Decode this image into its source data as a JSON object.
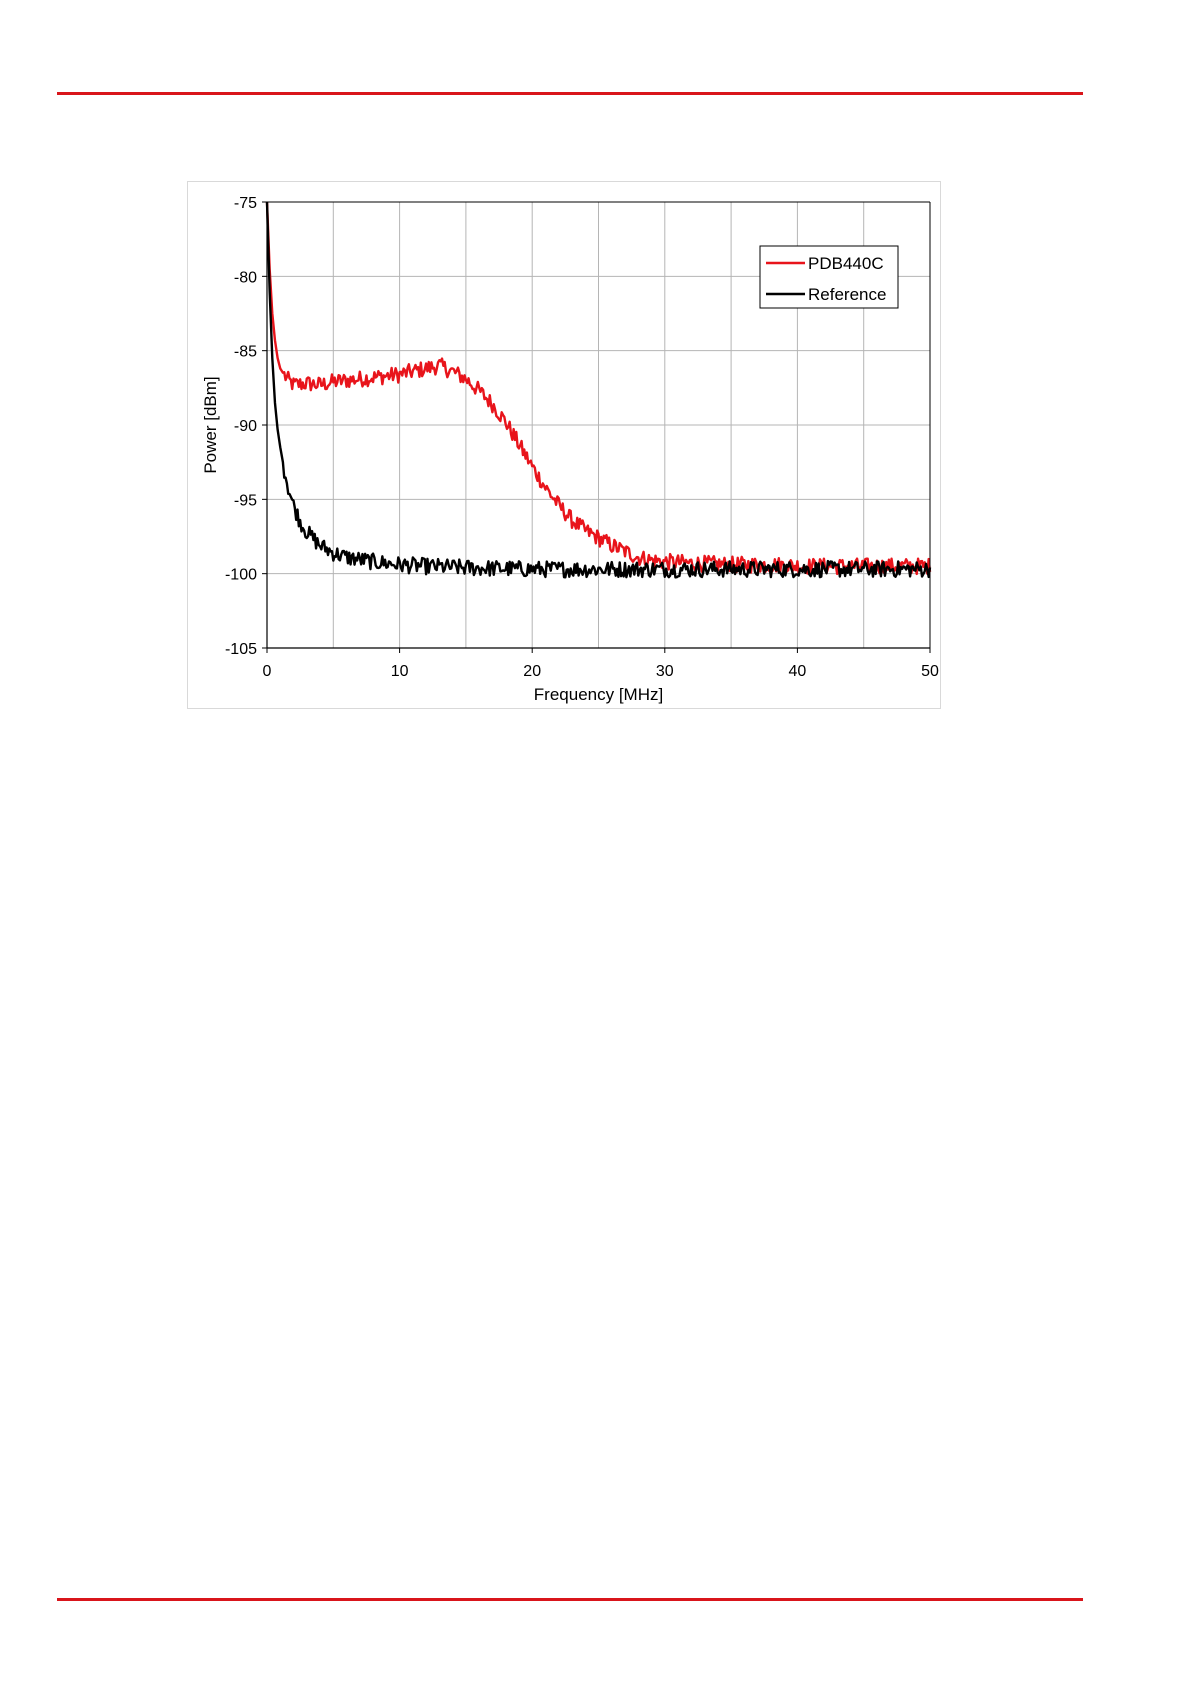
{
  "page": {
    "rule_color": "#d9151b"
  },
  "chart_data": {
    "type": "line",
    "title": "",
    "xlabel": "Frequency  [MHz]",
    "ylabel": "Power [dBm]",
    "xlim": [
      0,
      50
    ],
    "ylim": [
      -105,
      -75
    ],
    "x_ticks": [
      0,
      10,
      20,
      30,
      40,
      50
    ],
    "y_ticks": [
      -75,
      -80,
      -85,
      -90,
      -95,
      -100,
      -105
    ],
    "grid": true,
    "legend_position": "top-right",
    "series": [
      {
        "name": "PDB440C",
        "color": "#e8141b",
        "points": [
          [
            0,
            -75
          ],
          [
            0.2,
            -79.5
          ],
          [
            0.4,
            -82.5
          ],
          [
            0.6,
            -84.3
          ],
          [
            0.8,
            -85.5
          ],
          [
            1.0,
            -86.2
          ],
          [
            1.5,
            -86.9
          ],
          [
            2,
            -87.3
          ],
          [
            3,
            -87.2
          ],
          [
            4,
            -87.3
          ],
          [
            5,
            -87.1
          ],
          [
            6,
            -87.0
          ],
          [
            7,
            -86.9
          ],
          [
            8,
            -86.8
          ],
          [
            9,
            -86.7
          ],
          [
            10,
            -86.6
          ],
          [
            11,
            -86.4
          ],
          [
            12,
            -86.2
          ],
          [
            13,
            -86.0
          ],
          [
            14,
            -86.4
          ],
          [
            15,
            -86.9
          ],
          [
            16,
            -87.7
          ],
          [
            17,
            -88.6
          ],
          [
            18,
            -89.8
          ],
          [
            19,
            -91.3
          ],
          [
            20,
            -92.8
          ],
          [
            21,
            -94.2
          ],
          [
            22,
            -95.4
          ],
          [
            23,
            -96.4
          ],
          [
            24,
            -97.1
          ],
          [
            25,
            -97.6
          ],
          [
            26,
            -98.1
          ],
          [
            27,
            -98.5
          ],
          [
            28,
            -98.9
          ],
          [
            29,
            -99.1
          ],
          [
            30,
            -99.2
          ],
          [
            32,
            -99.3
          ],
          [
            35,
            -99.4
          ],
          [
            38,
            -99.4
          ],
          [
            41,
            -99.5
          ],
          [
            44,
            -99.5
          ],
          [
            47,
            -99.5
          ],
          [
            50,
            -99.5
          ]
        ]
      },
      {
        "name": "Reference",
        "color": "#000000",
        "points": [
          [
            0,
            -75
          ],
          [
            0.2,
            -81
          ],
          [
            0.4,
            -85.5
          ],
          [
            0.6,
            -88.5
          ],
          [
            0.8,
            -90.3
          ],
          [
            1.0,
            -91.5
          ],
          [
            1.3,
            -93.0
          ],
          [
            1.6,
            -94.2
          ],
          [
            2.0,
            -95.4
          ],
          [
            2.5,
            -96.5
          ],
          [
            3.0,
            -97.2
          ],
          [
            4.0,
            -98.1
          ],
          [
            5.0,
            -98.6
          ],
          [
            6.0,
            -98.9
          ],
          [
            8.0,
            -99.2
          ],
          [
            10,
            -99.4
          ],
          [
            12,
            -99.5
          ],
          [
            15,
            -99.6
          ],
          [
            20,
            -99.7
          ],
          [
            25,
            -99.7
          ],
          [
            30,
            -99.7
          ],
          [
            35,
            -99.7
          ],
          [
            40,
            -99.7
          ],
          [
            45,
            -99.7
          ],
          [
            50,
            -99.7
          ]
        ]
      }
    ]
  }
}
